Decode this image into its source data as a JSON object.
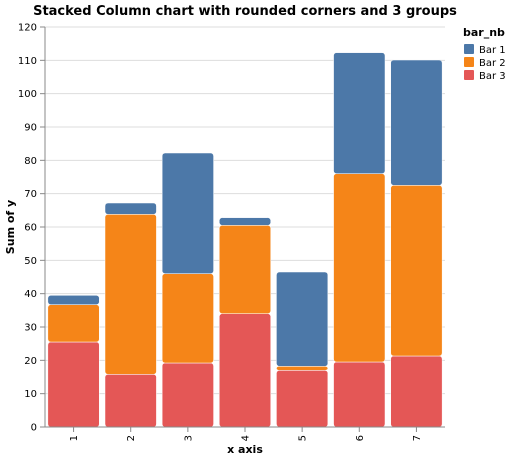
{
  "chart_data": {
    "type": "bar",
    "stacked": true,
    "title": "Stacked Column chart with rounded corners and 3 groups",
    "xlabel": "x axis",
    "ylabel": "Sum of y",
    "categories": [
      "1",
      "2",
      "3",
      "4",
      "5",
      "6",
      "7"
    ],
    "ylim": [
      0,
      120
    ],
    "yticks": [
      "0",
      "10",
      "20",
      "30",
      "40",
      "50",
      "60",
      "70",
      "80",
      "90",
      "100",
      "110",
      "120"
    ],
    "grid": true,
    "legend": {
      "title": "bar_nb",
      "placement": "top-right"
    },
    "series": [
      {
        "name": "Bar 3",
        "color": "#e45756",
        "values": [
          25.5,
          15.8,
          19.2,
          34,
          17,
          19.5,
          21.3
        ]
      },
      {
        "name": "Bar 2",
        "color": "#f58518",
        "values": [
          11.2,
          48,
          26.8,
          26.5,
          1.2,
          56.5,
          51.2
        ]
      },
      {
        "name": "Bar 1",
        "color": "#4c78a8",
        "values": [
          2.8,
          3.4,
          36.2,
          2.3,
          28.3,
          36.3,
          37.6
        ]
      }
    ],
    "legend_order": [
      "Bar 1",
      "Bar 2",
      "Bar 3"
    ]
  }
}
